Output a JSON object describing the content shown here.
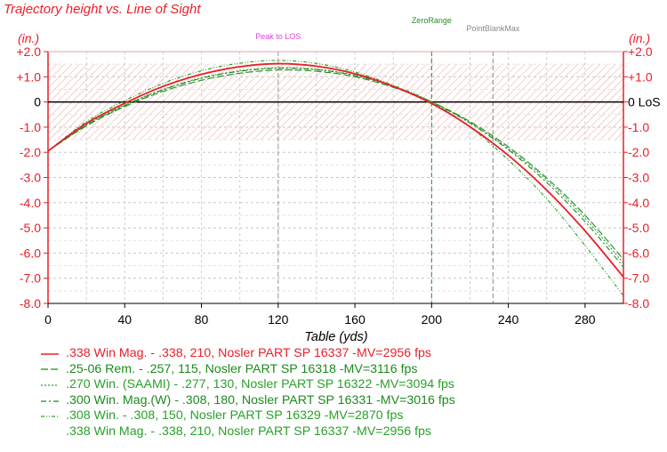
{
  "chart_data": {
    "type": "line",
    "title": "Trajectory height vs. Line of Sight",
    "xlabel": "Table (yds)",
    "y_unit_left": "(in.)",
    "y_unit_right": "(in.)",
    "xlim": [
      0,
      300
    ],
    "ylim": [
      -8.0,
      2.0
    ],
    "x_ticks": [
      0,
      40,
      80,
      120,
      160,
      200,
      240,
      280
    ],
    "x_tick_labels": [
      "0",
      "40",
      "80",
      "120",
      "160",
      "200",
      "240",
      "280"
    ],
    "y_ticks": [
      2,
      1,
      0,
      -1,
      -2,
      -3,
      -4,
      -5,
      -6,
      -7,
      -8
    ],
    "y_tick_labels_left": [
      "+2.0",
      "+1.0",
      "0",
      "-1.0",
      "-2.0",
      "-3.0",
      "-4.0",
      "-5.0",
      "-6.0",
      "-7.0",
      "-8.0"
    ],
    "y_tick_labels_right": [
      "+2.0",
      "+1.0",
      "0 LoS",
      "-1.0",
      "-2.0",
      "-3.0",
      "-4.0",
      "-5.0",
      "-6.0",
      "-7.0",
      "-8.0"
    ],
    "markers": [
      {
        "label": "Peak to LOS",
        "x": 120,
        "color": "#e040e0"
      },
      {
        "label": "ZeroRange",
        "x": 200,
        "color": "#2a8a2a"
      },
      {
        "label": "PointBlankMax",
        "x": 232,
        "color": "#8a8a8a"
      }
    ],
    "band": {
      "ymin": -1.5,
      "ymax": 1.5
    },
    "series": [
      {
        "name": ".338 Win Mag. - .338, 210, Nosler PART SP 16337 -MV=2956 fps",
        "color": "#e8202a",
        "dash": "",
        "x": [
          0,
          20,
          40,
          60,
          80,
          100,
          120,
          140,
          160,
          180,
          200,
          220,
          240,
          260,
          280,
          300
        ],
        "values": [
          -1.95,
          -0.85,
          -0.05,
          0.62,
          1.1,
          1.4,
          1.52,
          1.42,
          1.12,
          0.62,
          -0.06,
          -0.98,
          -2.12,
          -3.5,
          -5.12,
          -6.95
        ]
      },
      {
        "name": ".25-06 Rem. - .257, 115, Nosler PART SP 16318 -MV=3116 fps",
        "color": "#1e8a1e",
        "dash": "8 3",
        "x": [
          0,
          20,
          40,
          60,
          80,
          100,
          120,
          140,
          160,
          180,
          200,
          220,
          240,
          260,
          280,
          300
        ],
        "values": [
          -1.95,
          -0.95,
          -0.18,
          0.42,
          0.86,
          1.14,
          1.27,
          1.22,
          1.0,
          0.58,
          0.0,
          -0.78,
          -1.78,
          -3.02,
          -4.5,
          -6.25
        ]
      },
      {
        "name": ".270 Win. (SAAMI) - .277, 130, Nosler PART SP 16322 -MV=3094 fps",
        "color": "#2aa02a",
        "dash": "2 2",
        "x": [
          0,
          20,
          40,
          60,
          80,
          100,
          120,
          140,
          160,
          180,
          200,
          220,
          240,
          260,
          280,
          300
        ],
        "values": [
          -1.95,
          -0.9,
          -0.12,
          0.5,
          0.96,
          1.24,
          1.36,
          1.3,
          1.06,
          0.62,
          0.0,
          -0.82,
          -1.85,
          -3.1,
          -4.62,
          -6.4
        ]
      },
      {
        "name": ".300 Win. Mag.(W) - .308, 180, Nosler PART SP 16331 -MV=3016 fps",
        "color": "#1e8a1e",
        "dash": "6 3 2 3",
        "x": [
          0,
          20,
          40,
          60,
          80,
          100,
          120,
          140,
          160,
          180,
          200,
          220,
          240,
          260,
          280,
          300
        ],
        "values": [
          -1.95,
          -0.92,
          -0.14,
          0.48,
          0.94,
          1.22,
          1.34,
          1.28,
          1.05,
          0.62,
          0.0,
          -0.84,
          -1.9,
          -3.2,
          -4.75,
          -6.55
        ]
      },
      {
        "name": ".308 Win. - .308, 150, Nosler PART SP 16329 -MV=2870 fps",
        "color": "#2aa02a",
        "dash": "4 2 1 2 1 2",
        "x": [
          0,
          20,
          40,
          60,
          80,
          100,
          120,
          140,
          160,
          180,
          200,
          220,
          240,
          260,
          280,
          300
        ],
        "values": [
          -1.95,
          -0.78,
          0.05,
          0.74,
          1.24,
          1.54,
          1.65,
          1.53,
          1.19,
          0.66,
          0.0,
          -1.0,
          -2.3,
          -3.85,
          -5.7,
          -7.7
        ]
      },
      {
        "name": ".338 Win Mag. - .338, 210, Nosler PART SP 16337 -MV=2956 fps",
        "color": "#2aa02a",
        "dash": "none",
        "x": [],
        "values": []
      }
    ]
  }
}
